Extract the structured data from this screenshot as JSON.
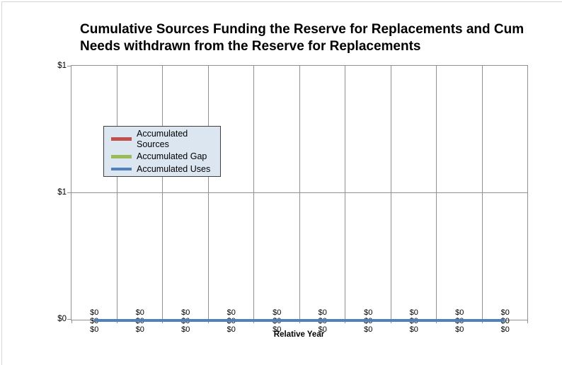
{
  "colors": {
    "background": "#FFFFFF",
    "chart_border": "#D6D6D6",
    "gridline": "#919191",
    "legend_bg": "#DCE6F1",
    "legend_border": "#404040"
  },
  "chart_data": {
    "type": "line",
    "title_lines": [
      "Cumulative Sources Funding the Reserve for Replacements and Cum",
      "Needs withdrawn from the Reserve for Replacements"
    ],
    "xlabel": "Relative Year",
    "ylabel": "",
    "ylim": [
      0,
      1
    ],
    "y_tick_labels": [
      "$1",
      "$1",
      "$0"
    ],
    "num_points": 10,
    "grid": true,
    "legend_position": "center-left",
    "series": [
      {
        "name": "Accumulated Sources",
        "color": "#C0504D",
        "values": [
          0,
          0,
          0,
          0,
          0,
          0,
          0,
          0,
          0,
          0
        ],
        "labels": [
          "$0",
          "$0",
          "$0",
          "$0",
          "$0",
          "$0",
          "$0",
          "$0",
          "$0",
          "$0"
        ]
      },
      {
        "name": "Accumulated Gap",
        "color": "#9BBB59",
        "values": [
          0,
          0,
          0,
          0,
          0,
          0,
          0,
          0,
          0,
          0
        ],
        "labels": [
          "$0",
          "$0",
          "$0",
          "$0",
          "$0",
          "$0",
          "$0",
          "$0",
          "$0",
          "$0"
        ]
      },
      {
        "name": "Accumulated Uses",
        "color": "#4F81BD",
        "values": [
          0,
          0,
          0,
          0,
          0,
          0,
          0,
          0,
          0,
          0
        ],
        "labels": [
          "$0",
          "$0",
          "$0",
          "$0",
          "$0",
          "$0",
          "$0",
          "$0",
          "$0",
          "$0"
        ]
      }
    ]
  }
}
